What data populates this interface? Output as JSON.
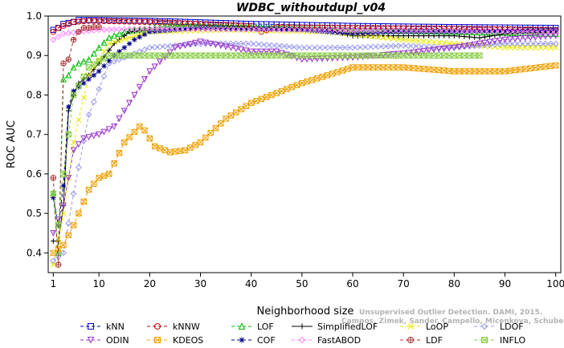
{
  "chart_data": {
    "type": "line",
    "title": "WDBC_withoutdupl_v04",
    "xlabel": "Neighborhood size",
    "ylabel": "ROC AUC",
    "xlim": [
      0,
      101
    ],
    "ylim": [
      0.35,
      1.0
    ],
    "xticks": [
      1,
      10,
      20,
      30,
      40,
      50,
      60,
      70,
      80,
      90,
      100
    ],
    "yticks": [
      0.4,
      0.5,
      0.6,
      0.7,
      0.8,
      0.9,
      1.0
    ],
    "xtick_labels": [
      "1",
      "10",
      "20",
      "30",
      "40",
      "50",
      "60",
      "70",
      "80",
      "90",
      "100"
    ],
    "ytick_labels": [
      "0.4",
      "0.5",
      "0.6",
      "0.7",
      "0.8",
      "0.9",
      "1.0"
    ],
    "grid": false,
    "legend_position": "bottom",
    "watermark": {
      "line1": "Unsupervised Outlier Detection. DAMI, 2015.",
      "line2": "Campos, Zimek, Sander, Campello, Micenkova, Schubert, Assent, Houle"
    },
    "series": [
      {
        "name": "kNN",
        "color": "#0000cc",
        "marker": "square",
        "dash": "4,3",
        "end": 100,
        "keys": [
          [
            1,
            0.965
          ],
          [
            2,
            0.97
          ],
          [
            3,
            0.98
          ],
          [
            5,
            0.985
          ],
          [
            6,
            0.99
          ],
          [
            10,
            0.99
          ],
          [
            20,
            0.988
          ],
          [
            40,
            0.98
          ],
          [
            60,
            0.975
          ],
          [
            80,
            0.972
          ],
          [
            100,
            0.97
          ]
        ]
      },
      {
        "name": "kNNW",
        "color": "#cc0000",
        "marker": "circle",
        "dash": "4,3",
        "end": 100,
        "keys": [
          [
            1,
            0.96
          ],
          [
            2,
            0.97
          ],
          [
            3,
            0.975
          ],
          [
            5,
            0.985
          ],
          [
            8,
            0.988
          ],
          [
            20,
            0.985
          ],
          [
            40,
            0.975
          ],
          [
            42,
            0.96
          ],
          [
            45,
            0.972
          ],
          [
            60,
            0.97
          ],
          [
            80,
            0.968
          ],
          [
            100,
            0.965
          ]
        ]
      },
      {
        "name": "LOF",
        "color": "#00bb00",
        "marker": "triangle-up",
        "dash": "4,3",
        "end": 100,
        "keys": [
          [
            1,
            0.55
          ],
          [
            2,
            0.4
          ],
          [
            3,
            0.84
          ],
          [
            4,
            0.85
          ],
          [
            5,
            0.87
          ],
          [
            6,
            0.88
          ],
          [
            8,
            0.89
          ],
          [
            10,
            0.92
          ],
          [
            12,
            0.945
          ],
          [
            15,
            0.96
          ],
          [
            20,
            0.97
          ],
          [
            25,
            0.975
          ],
          [
            40,
            0.972
          ],
          [
            60,
            0.965
          ],
          [
            80,
            0.96
          ],
          [
            100,
            0.955
          ]
        ]
      },
      {
        "name": "SimplifiedLOF",
        "color": "#000000",
        "marker": "plus",
        "dash": "",
        "end": 100,
        "keys": [
          [
            1,
            0.43
          ],
          [
            2,
            0.43
          ],
          [
            3,
            0.52
          ],
          [
            4,
            0.76
          ],
          [
            5,
            0.8
          ],
          [
            6,
            0.83
          ],
          [
            8,
            0.85
          ],
          [
            10,
            0.88
          ],
          [
            13,
            0.93
          ],
          [
            16,
            0.96
          ],
          [
            20,
            0.965
          ],
          [
            30,
            0.97
          ],
          [
            55,
            0.965
          ],
          [
            60,
            0.95
          ],
          [
            70,
            0.95
          ],
          [
            80,
            0.95
          ],
          [
            85,
            0.945
          ],
          [
            90,
            0.955
          ],
          [
            100,
            0.96
          ]
        ]
      },
      {
        "name": "LoOP",
        "color": "#e8e800",
        "marker": "x",
        "dash": "4,3",
        "end": 100,
        "keys": [
          [
            1,
            0.37
          ],
          [
            3,
            0.5
          ],
          [
            5,
            0.68
          ],
          [
            8,
            0.85
          ],
          [
            12,
            0.93
          ],
          [
            20,
            0.96
          ],
          [
            35,
            0.965
          ],
          [
            55,
            0.96
          ],
          [
            70,
            0.94
          ],
          [
            80,
            0.93
          ],
          [
            90,
            0.92
          ],
          [
            100,
            0.92
          ]
        ]
      },
      {
        "name": "LDOF",
        "color": "#9999ee",
        "marker": "diamond",
        "dash": "4,3",
        "end": 100,
        "keys": [
          [
            1,
            0.38
          ],
          [
            3,
            0.4
          ],
          [
            5,
            0.55
          ],
          [
            8,
            0.75
          ],
          [
            12,
            0.88
          ],
          [
            20,
            0.92
          ],
          [
            30,
            0.93
          ],
          [
            40,
            0.93
          ],
          [
            50,
            0.92
          ],
          [
            60,
            0.92
          ],
          [
            70,
            0.925
          ],
          [
            80,
            0.92
          ],
          [
            90,
            0.93
          ],
          [
            100,
            0.93
          ]
        ]
      },
      {
        "name": "ODIN",
        "color": "#9933cc",
        "marker": "triangle-down",
        "dash": "4,3",
        "end": 100,
        "keys": [
          [
            1,
            0.45
          ],
          [
            3,
            0.52
          ],
          [
            5,
            0.66
          ],
          [
            7,
            0.69
          ],
          [
            10,
            0.7
          ],
          [
            13,
            0.72
          ],
          [
            16,
            0.78
          ],
          [
            20,
            0.86
          ],
          [
            25,
            0.92
          ],
          [
            30,
            0.935
          ],
          [
            40,
            0.91
          ],
          [
            45,
            0.91
          ],
          [
            50,
            0.89
          ],
          [
            60,
            0.895
          ],
          [
            70,
            0.905
          ],
          [
            80,
            0.92
          ],
          [
            90,
            0.94
          ],
          [
            100,
            0.95
          ]
        ]
      },
      {
        "name": "KDEOS",
        "color": "#f0a000",
        "marker": "box-x",
        "dash": "4,3",
        "end": 100,
        "keys": [
          [
            1,
            0.4
          ],
          [
            3,
            0.42
          ],
          [
            5,
            0.47
          ],
          [
            8,
            0.56
          ],
          [
            10,
            0.59
          ],
          [
            12,
            0.6
          ],
          [
            15,
            0.68
          ],
          [
            18,
            0.72
          ],
          [
            19,
            0.71
          ],
          [
            21,
            0.67
          ],
          [
            24,
            0.655
          ],
          [
            27,
            0.66
          ],
          [
            30,
            0.68
          ],
          [
            35,
            0.74
          ],
          [
            40,
            0.78
          ],
          [
            50,
            0.83
          ],
          [
            60,
            0.87
          ],
          [
            70,
            0.87
          ],
          [
            80,
            0.86
          ],
          [
            90,
            0.86
          ],
          [
            100,
            0.875
          ]
        ]
      },
      {
        "name": "COF",
        "color": "#000088",
        "marker": "asterisk",
        "dash": "4,3",
        "end": 100,
        "keys": [
          [
            1,
            0.54
          ],
          [
            2,
            0.47
          ],
          [
            3,
            0.57
          ],
          [
            4,
            0.77
          ],
          [
            5,
            0.81
          ],
          [
            7,
            0.83
          ],
          [
            10,
            0.86
          ],
          [
            13,
            0.9
          ],
          [
            17,
            0.94
          ],
          [
            20,
            0.96
          ],
          [
            30,
            0.97
          ],
          [
            50,
            0.965
          ],
          [
            60,
            0.955
          ],
          [
            70,
            0.96
          ],
          [
            80,
            0.96
          ],
          [
            90,
            0.962
          ],
          [
            100,
            0.965
          ]
        ]
      },
      {
        "name": "FastABOD",
        "color": "#ff88ff",
        "marker": "diamond",
        "dash": "4,3",
        "end": 100,
        "keys": [
          [
            1,
            0.94
          ],
          [
            3,
            0.955
          ],
          [
            6,
            0.96
          ],
          [
            10,
            0.965
          ],
          [
            20,
            0.968
          ],
          [
            50,
            0.965
          ],
          [
            80,
            0.962
          ],
          [
            100,
            0.96
          ]
        ]
      },
      {
        "name": "LDF",
        "color": "#aa3333",
        "marker": "circle-plus",
        "dash": "4,3",
        "end": 10,
        "keys": [
          [
            1,
            0.59
          ],
          [
            2,
            0.37
          ],
          [
            3,
            0.88
          ],
          [
            4,
            0.89
          ],
          [
            5,
            0.94
          ],
          [
            6,
            0.96
          ],
          [
            7,
            0.97
          ],
          [
            8,
            0.97
          ],
          [
            9,
            0.972
          ],
          [
            10,
            0.972
          ]
        ]
      },
      {
        "name": "INFLO",
        "color": "#88cc44",
        "marker": "box-x",
        "dash": "4,3",
        "end": 85,
        "keys": [
          [
            1,
            0.55
          ],
          [
            2,
            0.47
          ],
          [
            3,
            0.6
          ],
          [
            5,
            0.8
          ],
          [
            8,
            0.87
          ],
          [
            12,
            0.9
          ],
          [
            20,
            0.9
          ],
          [
            40,
            0.9
          ],
          [
            60,
            0.9
          ],
          [
            85,
            0.9
          ]
        ]
      }
    ]
  }
}
